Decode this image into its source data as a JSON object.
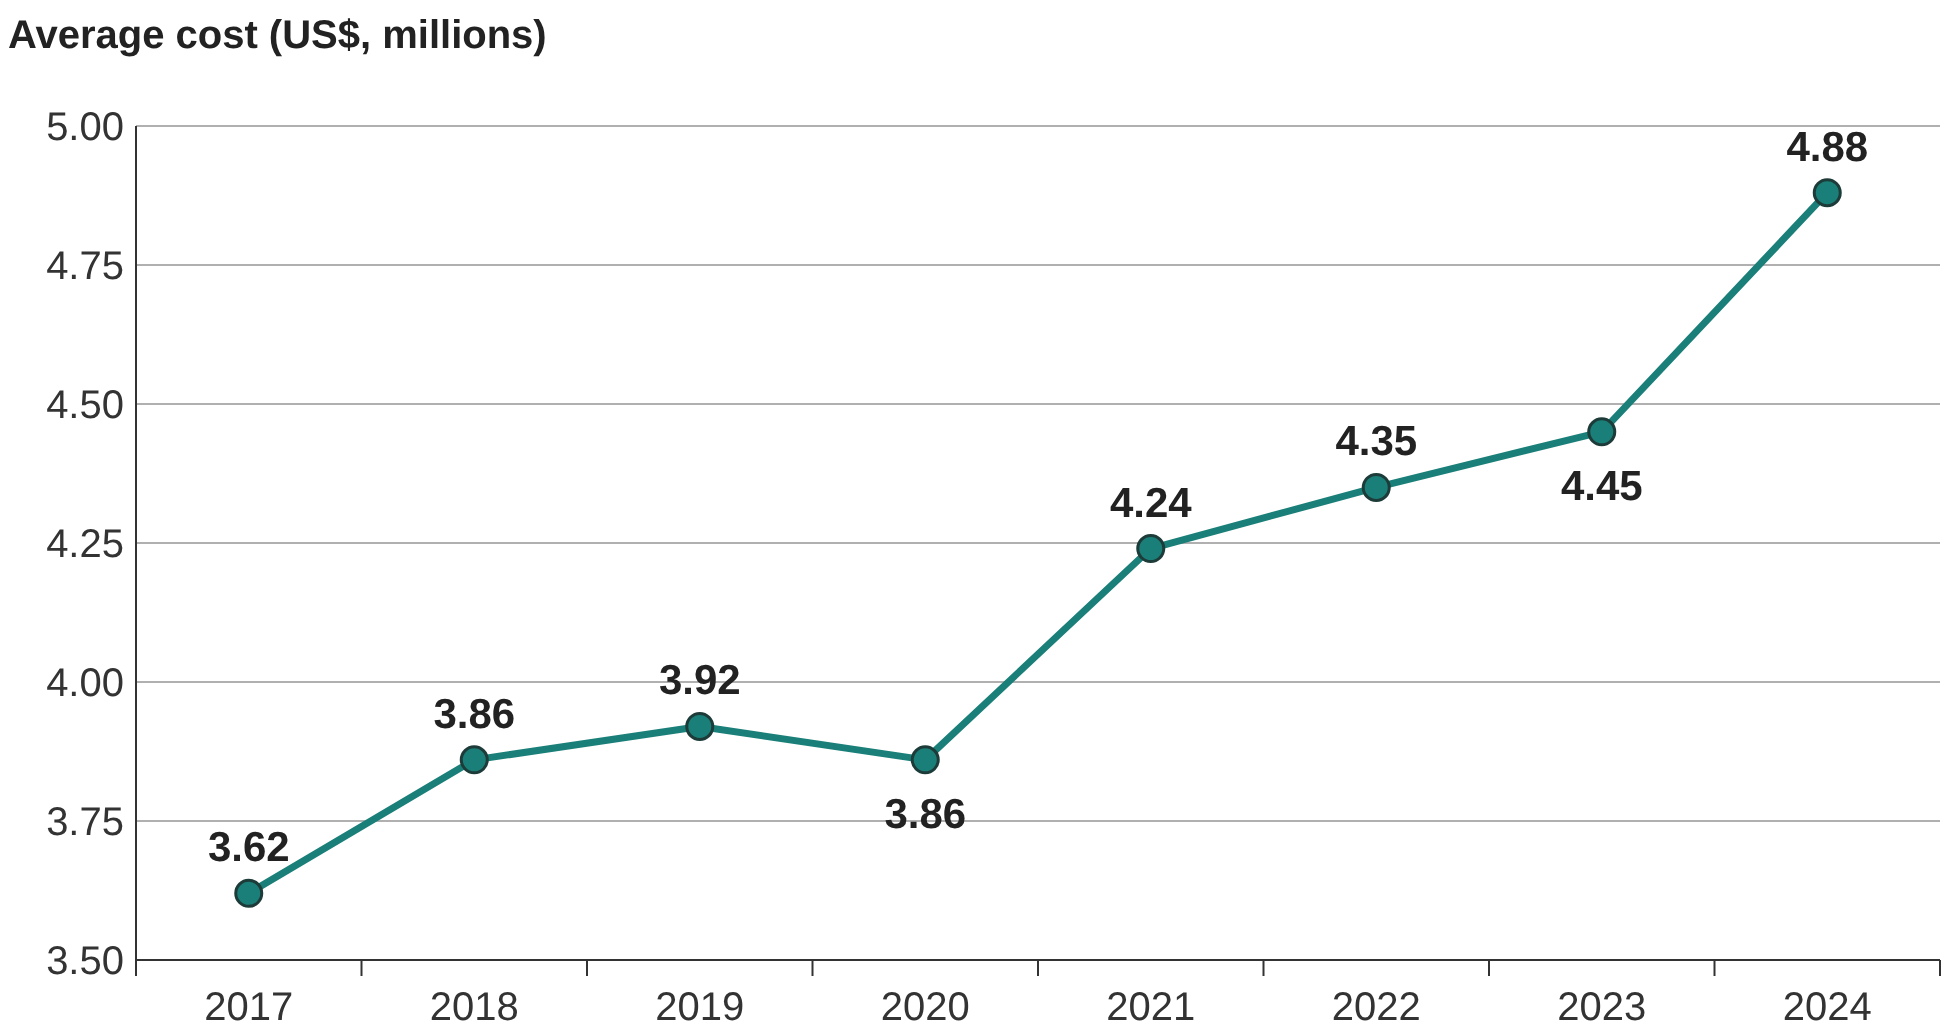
{
  "chart_data": {
    "type": "line",
    "title": "Average cost (US$, millions)",
    "categories": [
      "2017",
      "2018",
      "2019",
      "2020",
      "2021",
      "2022",
      "2023",
      "2024"
    ],
    "series": [
      {
        "color": "#1a7f78",
        "values": [
          3.62,
          3.86,
          3.92,
          3.86,
          4.24,
          4.35,
          4.45,
          4.88
        ]
      }
    ],
    "ylim": [
      3.5,
      5.0
    ],
    "yticks": [
      {
        "value": 3.5,
        "label": "3.50"
      },
      {
        "value": 3.75,
        "label": "3.75"
      },
      {
        "value": 4.0,
        "label": "4.00"
      },
      {
        "value": 4.25,
        "label": "4.25"
      },
      {
        "value": 4.5,
        "label": "4.50"
      },
      {
        "value": 4.75,
        "label": "4.75"
      },
      {
        "value": 5.0,
        "label": "5.00"
      }
    ],
    "grid": "y",
    "marker": "circle",
    "line_style": "solid",
    "data_labels": true
  }
}
